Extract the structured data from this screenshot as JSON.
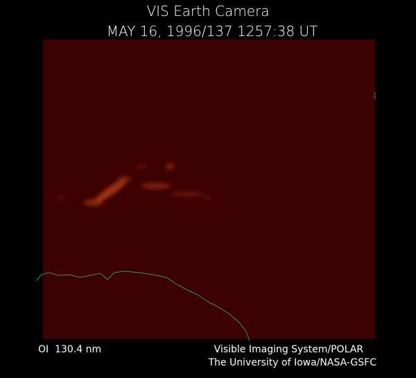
{
  "header": {
    "title": "VIS Earth Camera",
    "subtitle": "MAY 16, 1996/137 1257:38 UT"
  },
  "footer": {
    "filter": "OI  130.4 nm",
    "credit_1": "Visible Imaging System/POLAR",
    "credit_2": "The University of Iowa/NASA-GSFC"
  }
}
